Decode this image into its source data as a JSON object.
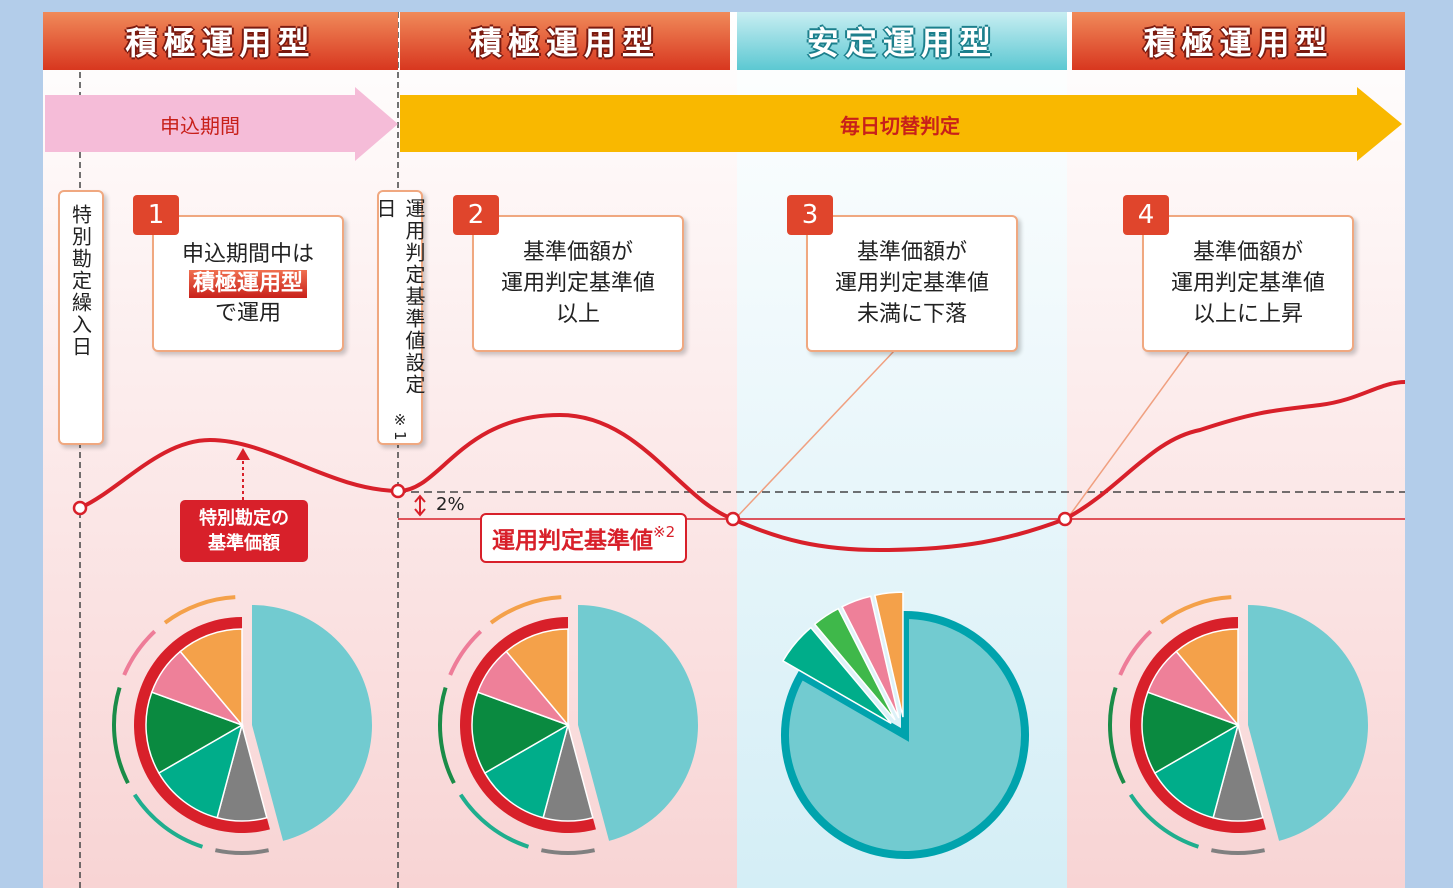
{
  "headers": [
    "積極運用型",
    "積極運用型",
    "安定運用型",
    "積極運用型"
  ],
  "arrows": {
    "application": "申込期間",
    "daily": "毎日切替判定"
  },
  "dates": {
    "transfer": "特別勘定繰入日",
    "setting": "運用判定基準値設定日",
    "setting_note": "※1"
  },
  "steps": [
    {
      "number": "1",
      "lines": [
        "申込期間中は",
        "積極運用型",
        "で運用"
      ]
    },
    {
      "number": "2",
      "lines": [
        "基準価額が",
        "運用判定基準値",
        "以上"
      ]
    },
    {
      "number": "3",
      "lines": [
        "基準価額が",
        "運用判定基準値",
        "未満に下落"
      ]
    },
    {
      "number": "4",
      "lines": [
        "基準価額が",
        "運用判定基準値",
        "以上に上昇"
      ]
    }
  ],
  "threshold": {
    "gap": "2%",
    "label": "運用判定基準値",
    "note": "※2"
  },
  "nav_label": [
    "特別勘定の",
    "基準価額"
  ]
}
